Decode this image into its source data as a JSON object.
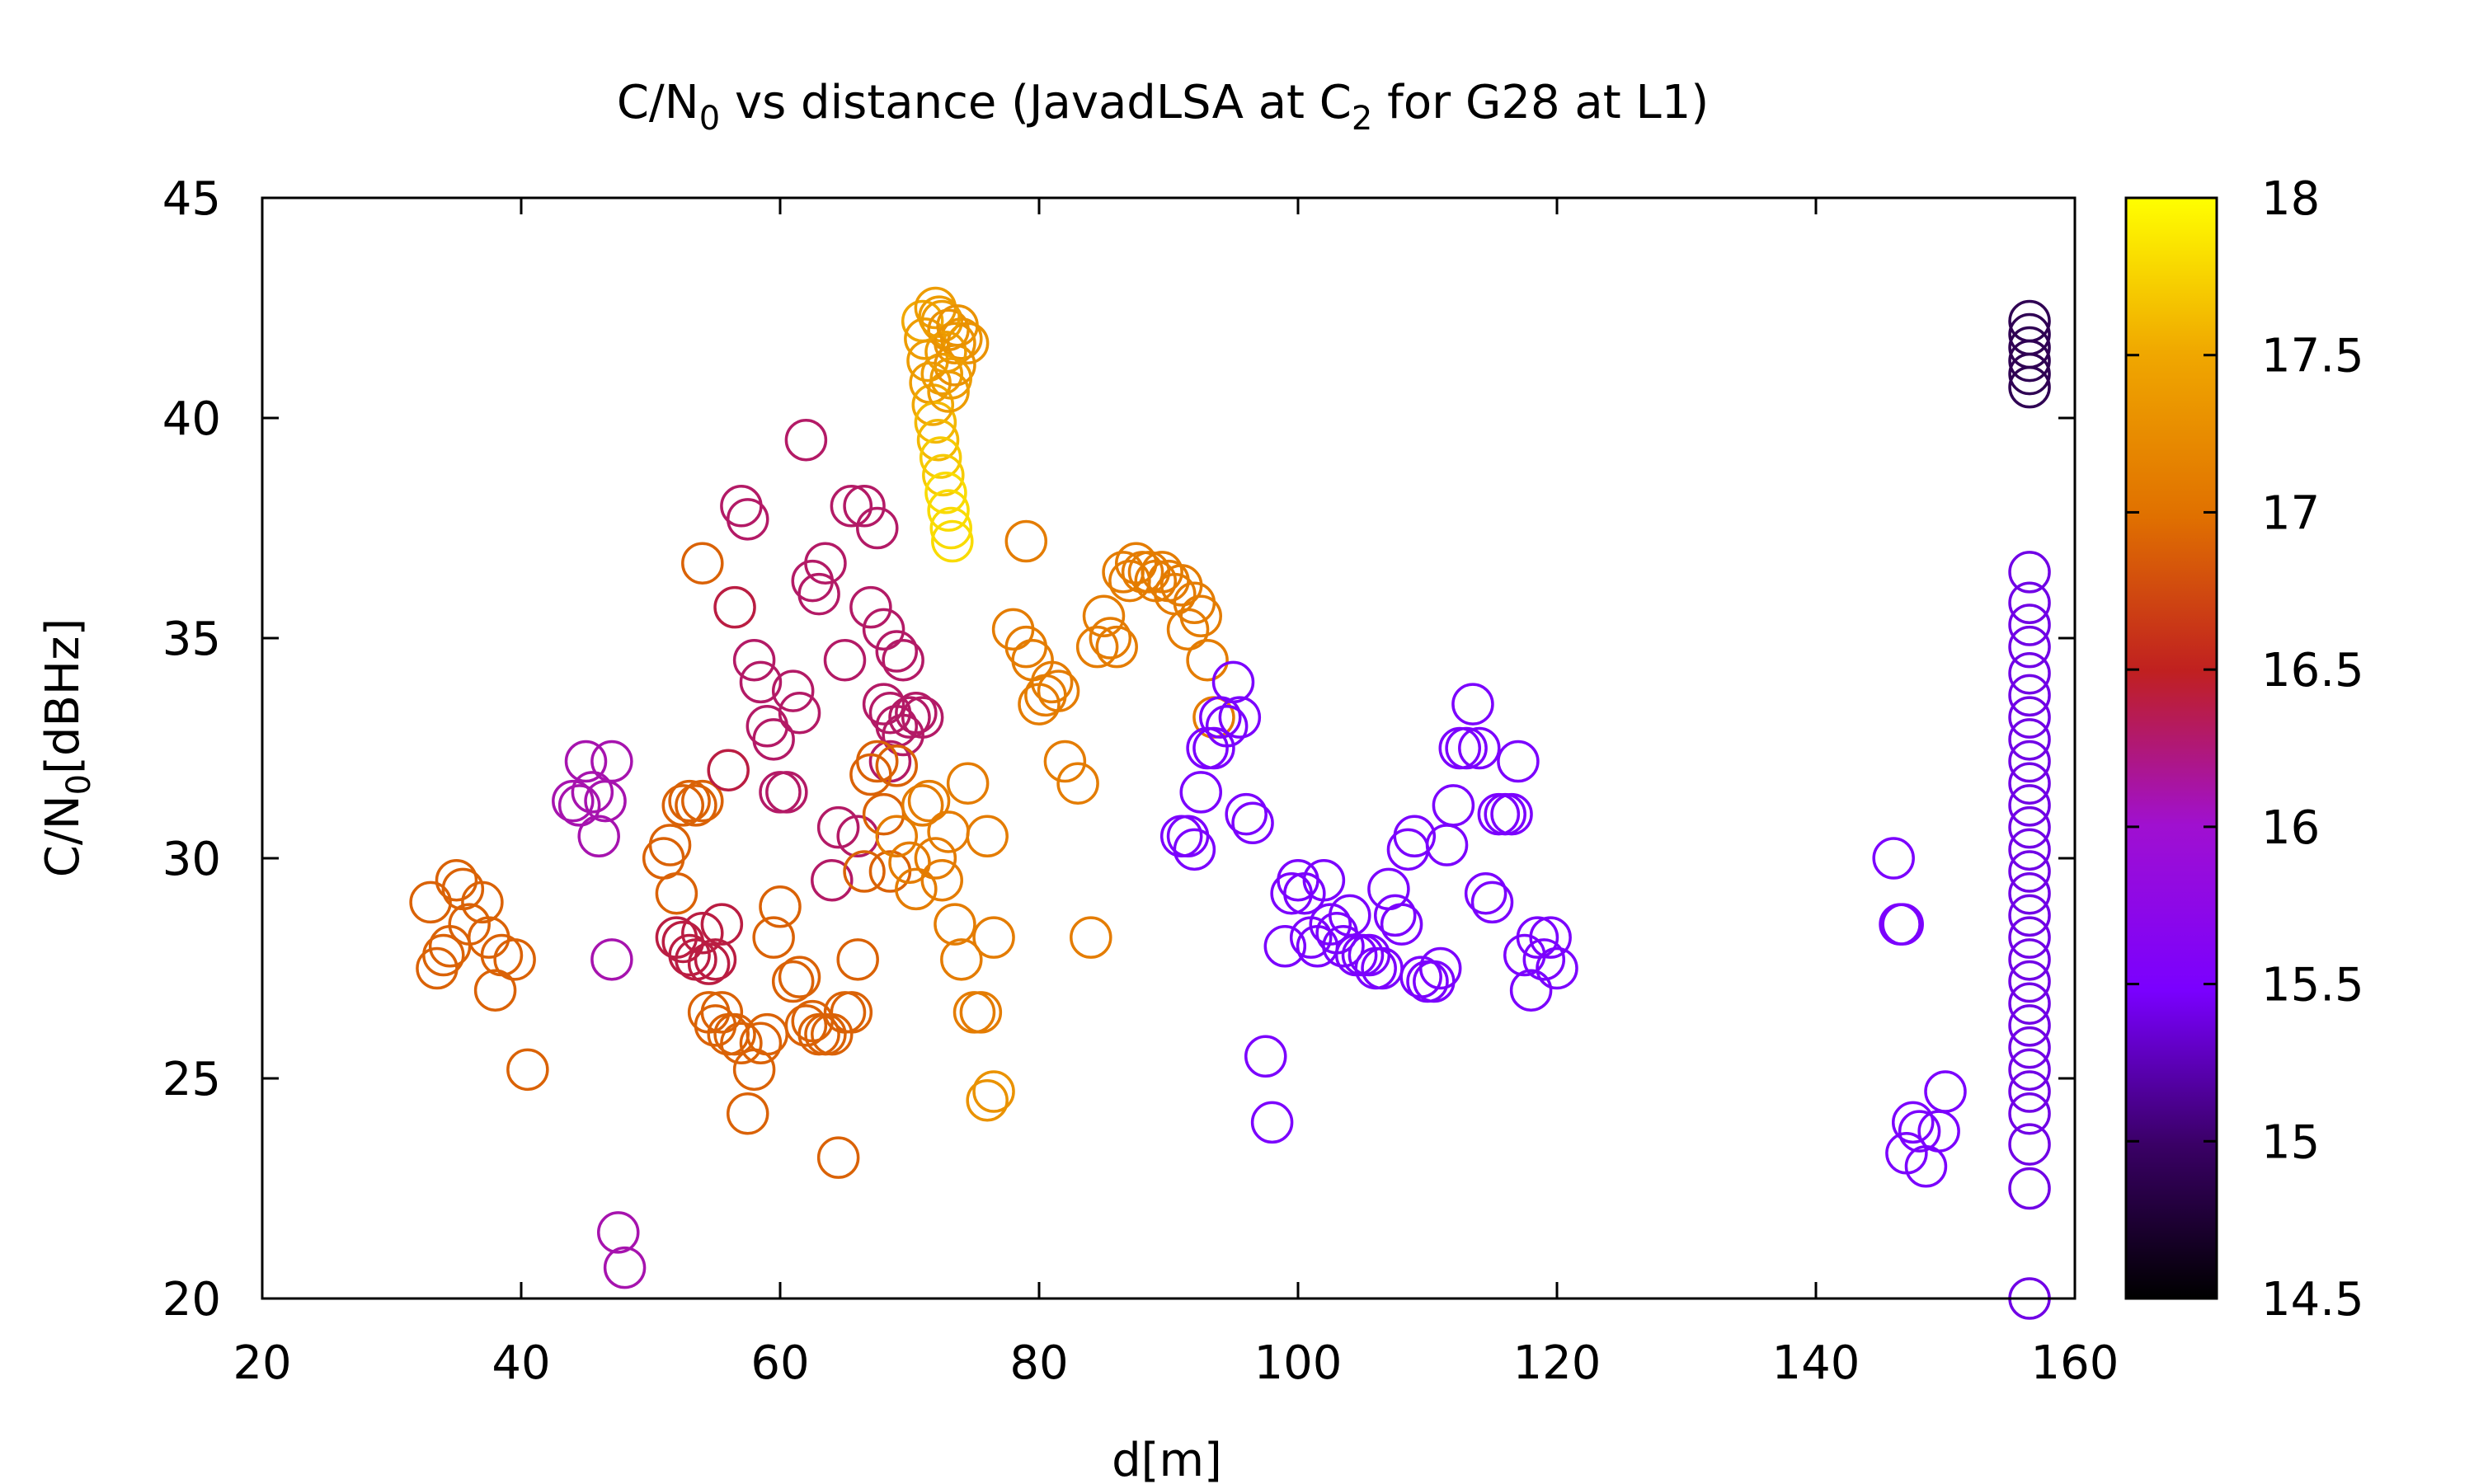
{
  "chart_data": {
    "type": "scatter",
    "title": {
      "pre": "C/N",
      "sub": "0",
      "mid": " vs distance (JavadLSA at C",
      "sub2": "2",
      "post": " for G28 at L1)"
    },
    "xlabel": "d[m]",
    "ylabel": {
      "pre": "C/N",
      "sub": "0",
      "post": "[dBHz]"
    },
    "xlim": [
      20,
      160
    ],
    "ylim": [
      20,
      45
    ],
    "xticks": [
      20,
      40,
      60,
      80,
      100,
      120,
      140,
      160
    ],
    "yticks": [
      20,
      25,
      30,
      35,
      40,
      45
    ],
    "colorbar": {
      "range": [
        14.5,
        18
      ],
      "ticks": [
        "14.5",
        "15",
        "15.5",
        "16",
        "16.5",
        "17",
        "17.5",
        "18"
      ],
      "palette": "black-purple-red-orange-yellow"
    },
    "marker": "open-circle",
    "grid": false,
    "points": [
      [
        33,
        29,
        16.9
      ],
      [
        33.5,
        27.5,
        16.9
      ],
      [
        34,
        27.8,
        16.9
      ],
      [
        34.5,
        28,
        16.9
      ],
      [
        35,
        29.5,
        16.9
      ],
      [
        35.5,
        29.3,
        16.9
      ],
      [
        36,
        28.5,
        16.9
      ],
      [
        37,
        29,
        16.9
      ],
      [
        37.5,
        28.2,
        16.9
      ],
      [
        38,
        27,
        16.9
      ],
      [
        38.5,
        27.8,
        16.9
      ],
      [
        39.5,
        27.7,
        16.9
      ],
      [
        40.5,
        25.2,
        16.9
      ],
      [
        44,
        31.3,
        16.1
      ],
      [
        44.5,
        31.2,
        16.1
      ],
      [
        45,
        32.2,
        16.1
      ],
      [
        45.5,
        31.5,
        16.1
      ],
      [
        46,
        30.5,
        16.1
      ],
      [
        46.5,
        31.3,
        16.1
      ],
      [
        47,
        32.2,
        16.1
      ],
      [
        47,
        27.7,
        16.1
      ],
      [
        47.5,
        21.5,
        16.1
      ],
      [
        48,
        20.7,
        16.1
      ],
      [
        51,
        30,
        16.9
      ],
      [
        51.5,
        30.3,
        16.9
      ],
      [
        52,
        29.2,
        16.9
      ],
      [
        52.5,
        31.2,
        16.9
      ],
      [
        53,
        31.3,
        16.9
      ],
      [
        53.5,
        31.2,
        16.9
      ],
      [
        54,
        31.3,
        16.9
      ],
      [
        54,
        36.7,
        16.9
      ],
      [
        54.5,
        26.5,
        16.9
      ],
      [
        55,
        26.2,
        16.9
      ],
      [
        55.5,
        26.5,
        16.9
      ],
      [
        56,
        26,
        16.9
      ],
      [
        56.5,
        26,
        16.9
      ],
      [
        57,
        25.8,
        16.9
      ],
      [
        57.5,
        24.2,
        16.9
      ],
      [
        58,
        25.2,
        16.9
      ],
      [
        52,
        28.2,
        16.4
      ],
      [
        52.5,
        28.1,
        16.4
      ],
      [
        53,
        27.8,
        16.4
      ],
      [
        53.5,
        27.7,
        16.4
      ],
      [
        54,
        28.3,
        16.4
      ],
      [
        54.5,
        27.6,
        16.4
      ],
      [
        55,
        27.7,
        16.4
      ],
      [
        55.5,
        28.5,
        16.4
      ],
      [
        56,
        32,
        16.4
      ],
      [
        56.5,
        35.7,
        16.4
      ],
      [
        57,
        38,
        16.3
      ],
      [
        57.5,
        37.7,
        16.3
      ],
      [
        58,
        34.5,
        16.3
      ],
      [
        58.5,
        34,
        16.3
      ],
      [
        59,
        33,
        16.3
      ],
      [
        59.5,
        32.7,
        16.3
      ],
      [
        60,
        31.5,
        16.3
      ],
      [
        60.5,
        31.5,
        16.3
      ],
      [
        61,
        33.8,
        16.3
      ],
      [
        61.5,
        33.3,
        16.3
      ],
      [
        62,
        39.5,
        16.3
      ],
      [
        62.5,
        36.3,
        16.3
      ],
      [
        63,
        36,
        16.3
      ],
      [
        63.5,
        36.7,
        16.3
      ],
      [
        64,
        29.5,
        16.3
      ],
      [
        64.5,
        30.7,
        16.3
      ],
      [
        65,
        34.5,
        16.3
      ],
      [
        65.5,
        38,
        16.3
      ],
      [
        66,
        30.5,
        16.3
      ],
      [
        66.5,
        38,
        16.3
      ],
      [
        67,
        35.7,
        16.3
      ],
      [
        67.5,
        37.5,
        16.3
      ],
      [
        68,
        35.2,
        16.3
      ],
      [
        68,
        33.5,
        16.3
      ],
      [
        68.5,
        33.3,
        16.3
      ],
      [
        68.5,
        32.2,
        16.3
      ],
      [
        69,
        34.7,
        16.3
      ],
      [
        69,
        33,
        16.3
      ],
      [
        69.5,
        34.5,
        16.3
      ],
      [
        69.5,
        32.8,
        16.3
      ],
      [
        70,
        33.2,
        16.3
      ],
      [
        70.5,
        33.3,
        16.3
      ],
      [
        71,
        33.2,
        16.3
      ],
      [
        58.5,
        25.8,
        16.9
      ],
      [
        59,
        26,
        16.9
      ],
      [
        59.5,
        28.2,
        16.9
      ],
      [
        60,
        28.9,
        16.9
      ],
      [
        61,
        27.2,
        16.9
      ],
      [
        61.5,
        27.3,
        16.9
      ],
      [
        62,
        26.2,
        16.9
      ],
      [
        62.5,
        26.3,
        16.9
      ],
      [
        63,
        26,
        16.9
      ],
      [
        63.5,
        26,
        16.9
      ],
      [
        64,
        26,
        16.9
      ],
      [
        64.5,
        23.2,
        16.9
      ],
      [
        65,
        26.5,
        16.9
      ],
      [
        65.5,
        26.5,
        16.9
      ],
      [
        66,
        27.7,
        16.9
      ],
      [
        66.5,
        29.7,
        16.9
      ],
      [
        67,
        31.9,
        16.9
      ],
      [
        67.5,
        32.2,
        16.9
      ],
      [
        68,
        31,
        16.9
      ],
      [
        68.5,
        29.7,
        16.9
      ],
      [
        69,
        32.1,
        16.9
      ],
      [
        69,
        30.5,
        17.1
      ],
      [
        70,
        29.9,
        17.1
      ],
      [
        70.5,
        29.3,
        17.1
      ],
      [
        71,
        31.2,
        17.1
      ],
      [
        71.5,
        31.3,
        17.1
      ],
      [
        72,
        30,
        17.1
      ],
      [
        72.5,
        29.5,
        17.1
      ],
      [
        73,
        30.6,
        17.1
      ],
      [
        73.5,
        28.5,
        17.1
      ],
      [
        74,
        27.7,
        17.1
      ],
      [
        74.5,
        31.7,
        17.1
      ],
      [
        75,
        26.5,
        17.1
      ],
      [
        75.5,
        26.5,
        17.1
      ],
      [
        76,
        30.5,
        17.1
      ],
      [
        76.5,
        28.2,
        17.1
      ],
      [
        76,
        24.5,
        17.3
      ],
      [
        76.5,
        24.7,
        17.3
      ],
      [
        71,
        42.2,
        17.5
      ],
      [
        71.2,
        41.8,
        17.4
      ],
      [
        71.4,
        41.3,
        17.4
      ],
      [
        71.6,
        40.8,
        17.4
      ],
      [
        71.8,
        40.3,
        17.5
      ],
      [
        72,
        39.9,
        17.6
      ],
      [
        72.2,
        39.5,
        17.6
      ],
      [
        72.4,
        39.1,
        17.7
      ],
      [
        72.6,
        38.7,
        17.7
      ],
      [
        72.8,
        38.3,
        17.8
      ],
      [
        73,
        37.9,
        17.8
      ],
      [
        73.2,
        37.5,
        17.8
      ],
      [
        73.3,
        37.2,
        17.8
      ],
      [
        72,
        42.5,
        17.4
      ],
      [
        72.5,
        42.2,
        17.4
      ],
      [
        73,
        42,
        17.3
      ],
      [
        73.5,
        41.7,
        17.3
      ],
      [
        74,
        41.8,
        17.3
      ],
      [
        74.5,
        41.7,
        17.3
      ],
      [
        72.5,
        41,
        17.4
      ],
      [
        73,
        40.6,
        17.4
      ],
      [
        73.5,
        41.2,
        17.3
      ],
      [
        72.3,
        42.3,
        17.4
      ],
      [
        72.8,
        41.5,
        17.4
      ],
      [
        73.2,
        40.9,
        17.4
      ],
      [
        73.7,
        42.1,
        17.3
      ],
      [
        78,
        35.2,
        17.1
      ],
      [
        79,
        34.8,
        17.1
      ],
      [
        79.5,
        34.5,
        17.1
      ],
      [
        80,
        33.5,
        17.1
      ],
      [
        80.5,
        33.7,
        17.1
      ],
      [
        81,
        34,
        17.1
      ],
      [
        81.5,
        33.8,
        17.1
      ],
      [
        82,
        32.2,
        17.1
      ],
      [
        83,
        31.7,
        17.1
      ],
      [
        84,
        28.2,
        17.1
      ],
      [
        79,
        37.2,
        17.1
      ],
      [
        84.5,
        34.8,
        17.1
      ],
      [
        85,
        35.5,
        17.1
      ],
      [
        85.5,
        35,
        17.1
      ],
      [
        86,
        34.8,
        17.1
      ],
      [
        86.5,
        36.5,
        17.1
      ],
      [
        87,
        36.3,
        17.1
      ],
      [
        87.5,
        36.7,
        17.1
      ],
      [
        88,
        36.5,
        17.1
      ],
      [
        88.5,
        36.5,
        17.1
      ],
      [
        89,
        36.3,
        17.1
      ],
      [
        89.5,
        36.5,
        17.1
      ],
      [
        90,
        36.3,
        17.1
      ],
      [
        90.5,
        36,
        17.1
      ],
      [
        91,
        36.2,
        17.1
      ],
      [
        91.5,
        35.2,
        17.1
      ],
      [
        92,
        35.8,
        17.1
      ],
      [
        92.5,
        35.5,
        17.1
      ],
      [
        93,
        34.5,
        17.1
      ],
      [
        93.5,
        33.2,
        17.1
      ],
      [
        91,
        30.5,
        15.5
      ],
      [
        91.5,
        30.5,
        15.5
      ],
      [
        92,
        30.2,
        15.5
      ],
      [
        92.5,
        31.5,
        15.5
      ],
      [
        93,
        32.5,
        15.5
      ],
      [
        93.5,
        32.5,
        15.5
      ],
      [
        94,
        33.2,
        15.5
      ],
      [
        94.5,
        33,
        15.5
      ],
      [
        95,
        34,
        15.5
      ],
      [
        95.5,
        33.2,
        15.5
      ],
      [
        96,
        31,
        15.5
      ],
      [
        96.5,
        30.8,
        15.5
      ],
      [
        97.5,
        25.5,
        15.5
      ],
      [
        98,
        24,
        15.5
      ],
      [
        99,
        28,
        15.5
      ],
      [
        99.5,
        29.2,
        15.5
      ],
      [
        100,
        29.5,
        15.5
      ],
      [
        100.5,
        29.2,
        15.5
      ],
      [
        101,
        28.2,
        15.5
      ],
      [
        101.5,
        28,
        15.5
      ],
      [
        102,
        29.5,
        15.5
      ],
      [
        102.5,
        28.5,
        15.5
      ],
      [
        103,
        28.3,
        15.5
      ],
      [
        103.5,
        28,
        15.5
      ],
      [
        104,
        28.7,
        15.5
      ],
      [
        104.5,
        27.8,
        15.5
      ],
      [
        105,
        27.8,
        15.5
      ],
      [
        105.5,
        27.8,
        15.5
      ],
      [
        106,
        27.5,
        15.5
      ],
      [
        106.5,
        27.5,
        15.5
      ],
      [
        107,
        29.3,
        15.5
      ],
      [
        107.5,
        28.7,
        15.5
      ],
      [
        108,
        28.5,
        15.5
      ],
      [
        108.5,
        30.2,
        15.5
      ],
      [
        109,
        30.5,
        15.5
      ],
      [
        109.5,
        27.3,
        15.5
      ],
      [
        110,
        27.2,
        15.5
      ],
      [
        110.5,
        27.2,
        15.5
      ],
      [
        111,
        27.5,
        15.5
      ],
      [
        111.5,
        30.3,
        15.5
      ],
      [
        112,
        31.2,
        15.5
      ],
      [
        112.5,
        32.5,
        15.5
      ],
      [
        113,
        32.5,
        15.5
      ],
      [
        113.5,
        33.5,
        15.5
      ],
      [
        114,
        32.5,
        15.5
      ],
      [
        114.5,
        29.2,
        15.5
      ],
      [
        115,
        29,
        15.5
      ],
      [
        115.5,
        31,
        15.5
      ],
      [
        116,
        31,
        15.5
      ],
      [
        116.5,
        31,
        15.5
      ],
      [
        117,
        32.2,
        15.5
      ],
      [
        117.5,
        27.8,
        15.5
      ],
      [
        118,
        27,
        15.5
      ],
      [
        118.5,
        28.2,
        15.5
      ],
      [
        119,
        27.7,
        15.5
      ],
      [
        119.5,
        28.2,
        15.5
      ],
      [
        120,
        27.5,
        15.5
      ],
      [
        146,
        30,
        15.5
      ],
      [
        146.5,
        28.5,
        15.5
      ],
      [
        146.7,
        28.5,
        15.5
      ],
      [
        147,
        23.3,
        15.5
      ],
      [
        147.5,
        24,
        15.5
      ],
      [
        148,
        23.8,
        15.5
      ],
      [
        148.5,
        23,
        15.5
      ],
      [
        149.5,
        23.8,
        15.5
      ],
      [
        150,
        24.7,
        15.5
      ],
      [
        156.5,
        42.2,
        14.9
      ],
      [
        156.5,
        41.9,
        14.9
      ],
      [
        156.5,
        41.6,
        14.9
      ],
      [
        156.5,
        41.3,
        14.9
      ],
      [
        156.5,
        41,
        14.9
      ],
      [
        156.5,
        40.7,
        14.9
      ],
      [
        156.5,
        36.5,
        15.4
      ],
      [
        156.5,
        35.8,
        15.4
      ],
      [
        156.5,
        35.3,
        15.4
      ],
      [
        156.5,
        34.8,
        15.4
      ],
      [
        156.5,
        34.2,
        15.4
      ],
      [
        156.5,
        33.7,
        15.4
      ],
      [
        156.5,
        33.2,
        15.4
      ],
      [
        156.5,
        32.7,
        15.4
      ],
      [
        156.5,
        32.2,
        15.4
      ],
      [
        156.5,
        31.7,
        15.4
      ],
      [
        156.5,
        31.2,
        15.4
      ],
      [
        156.5,
        30.7,
        15.4
      ],
      [
        156.5,
        30.2,
        15.4
      ],
      [
        156.5,
        29.7,
        15.4
      ],
      [
        156.5,
        29.2,
        15.4
      ],
      [
        156.5,
        28.7,
        15.4
      ],
      [
        156.5,
        28.2,
        15.4
      ],
      [
        156.5,
        27.7,
        15.4
      ],
      [
        156.5,
        27.2,
        15.4
      ],
      [
        156.5,
        26.7,
        15.4
      ],
      [
        156.5,
        26.2,
        15.4
      ],
      [
        156.5,
        25.7,
        15.4
      ],
      [
        156.5,
        25.2,
        15.4
      ],
      [
        156.5,
        24.7,
        15.4
      ],
      [
        156.5,
        24.2,
        15.4
      ],
      [
        156.5,
        23.5,
        15.4
      ],
      [
        156.5,
        22.5,
        15.4
      ],
      [
        156.5,
        20,
        15.4
      ]
    ]
  }
}
